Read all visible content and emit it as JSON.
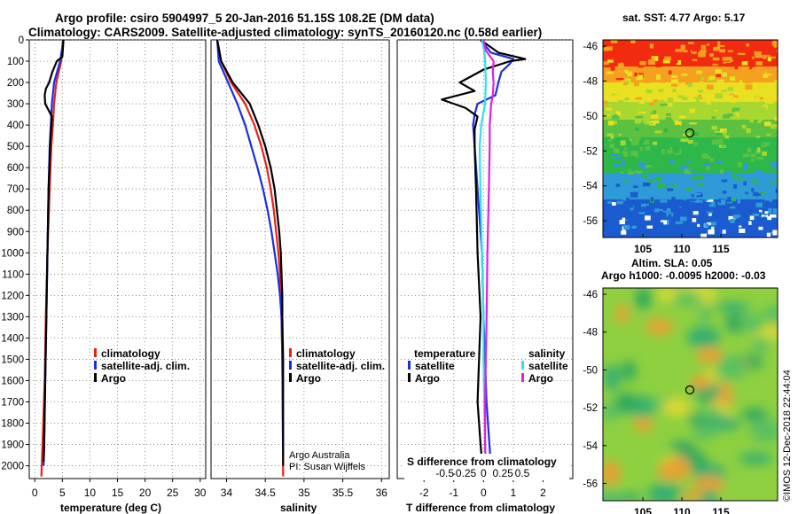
{
  "title_line1": "Argo profile: csiro 5904997_5 20-Jan-2016 51.15S 108.2E (DM data)",
  "title_line2": "Climatology: CARS2009. Satellite-adjusted climatology: synTS_20160120.nc (0.58d earlier)",
  "sst_title": "sat. SST: 4.77 Argo: 5.17",
  "sla_title_1": "Altim. SLA: 0.05",
  "sla_title_2": "Argo h1000: -0.0095 h2000: -0.03",
  "credit_1": "Argo Australia",
  "credit_2": "PI: Susan Wijffels",
  "timestamp": "©IMOS 12-Dec-2018 22:44:04",
  "colors": {
    "climatology": "#e8221a",
    "satellite": "#1a2ee0",
    "argo": "#000000",
    "satellite_s": "#30e0e8",
    "argo_s": "#e020e0"
  },
  "legend": {
    "climatology": "climatology",
    "satellite": "satellite-adj. clim.",
    "argo": "Argo"
  },
  "diff_legend": {
    "temperature": "temperature",
    "salinity": "salinity",
    "satellite": "satellite",
    "argo": "Argo"
  },
  "map_x_ticks": [
    "105",
    "110",
    "115"
  ],
  "map_y_ticks": [
    "-46",
    "-48",
    "-50",
    "-52",
    "-54",
    "-56"
  ],
  "chart_data": [
    {
      "type": "line",
      "title": "",
      "xlabel": "temperature (deg C)",
      "ylabel": "",
      "xlim": [
        -1,
        31
      ],
      "ylim": [
        2060,
        0
      ],
      "x_ticks": [
        "0",
        "5",
        "10",
        "15",
        "20",
        "25",
        "30"
      ],
      "y_ticks": [
        "0",
        "100",
        "200",
        "300",
        "400",
        "500",
        "600",
        "700",
        "800",
        "900",
        "1000",
        "1100",
        "1200",
        "1300",
        "1400",
        "1500",
        "1600",
        "1700",
        "1800",
        "1900",
        "2000"
      ],
      "series": [
        {
          "name": "climatology",
          "depth": [
            0,
            100,
            200,
            300,
            400,
            500,
            700,
            1000,
            1300,
            1600,
            1900,
            2050
          ],
          "values": [
            5.1,
            4.8,
            3.9,
            3.5,
            3.3,
            3.0,
            2.7,
            2.3,
            2.0,
            1.8,
            1.4,
            1.2
          ]
        },
        {
          "name": "satellite-adj. clim.",
          "depth": [
            0,
            100,
            200,
            300,
            400,
            500,
            700,
            1000,
            1300,
            1600,
            1900,
            2000
          ],
          "values": [
            5.2,
            4.6,
            3.5,
            3.1,
            2.9,
            2.7,
            2.5,
            2.3,
            2.1,
            1.9,
            1.7,
            1.6
          ]
        },
        {
          "name": "Argo",
          "depth": [
            0,
            80,
            100,
            150,
            200,
            230,
            260,
            300,
            330,
            360,
            400,
            500,
            700,
            1000,
            1300,
            1600,
            1900,
            1980
          ],
          "values": [
            5.2,
            5.0,
            4.0,
            3.2,
            2.6,
            2.0,
            1.8,
            1.9,
            2.5,
            3.1,
            3.0,
            2.8,
            2.5,
            2.3,
            2.1,
            1.9,
            1.7,
            1.6
          ]
        }
      ]
    },
    {
      "type": "line",
      "title": "",
      "xlabel": "salinity",
      "ylabel": "",
      "xlim": [
        33.8,
        36.1
      ],
      "ylim": [
        2060,
        0
      ],
      "x_ticks": [
        "34",
        "34.5",
        "35",
        "35.5",
        "36"
      ],
      "series": [
        {
          "name": "climatology",
          "depth": [
            0,
            100,
            200,
            300,
            400,
            500,
            600,
            700,
            800,
            900,
            1000,
            1100,
            1200,
            1300,
            1500,
            2050
          ],
          "values": [
            33.88,
            33.93,
            34.06,
            34.24,
            34.36,
            34.45,
            34.52,
            34.57,
            34.61,
            34.64,
            34.67,
            34.69,
            34.7,
            34.71,
            34.72,
            34.73
          ]
        },
        {
          "name": "satellite-adj. clim.",
          "depth": [
            0,
            100,
            200,
            300,
            400,
            500,
            600,
            700,
            800,
            900,
            1000,
            1100,
            1200,
            1300,
            1500,
            1950
          ],
          "values": [
            33.88,
            33.9,
            34.02,
            34.14,
            34.24,
            34.32,
            34.4,
            34.47,
            34.53,
            34.58,
            34.62,
            34.66,
            34.69,
            34.71,
            34.72,
            34.73
          ]
        },
        {
          "name": "Argo",
          "depth": [
            0,
            100,
            200,
            300,
            400,
            500,
            600,
            700,
            800,
            900,
            1000,
            1100,
            1200,
            1300,
            1500,
            2000
          ],
          "values": [
            33.88,
            33.93,
            34.08,
            34.3,
            34.41,
            34.5,
            34.57,
            34.62,
            34.65,
            34.68,
            34.7,
            34.71,
            34.72,
            34.72,
            34.73,
            34.73
          ]
        }
      ]
    },
    {
      "type": "line",
      "title": "",
      "xlabel": "T difference from climatology",
      "xlabel_top": "S difference from climatology",
      "xlim": [
        -2.9,
        3.0
      ],
      "ylim": [
        2060,
        0
      ],
      "x_ticks": [
        "-2",
        "-1",
        "0",
        "1",
        "2"
      ],
      "x_ticks_top": [
        "-0.5",
        "-0.25",
        "0",
        "0.25",
        "0.5"
      ],
      "series": [
        {
          "name": "temperature satellite",
          "depth": [
            0,
            60,
            90,
            110,
            150,
            200,
            260,
            300,
            350,
            400,
            500,
            700,
            1000,
            1300,
            1500,
            1700,
            1900,
            2000
          ],
          "values": [
            -0.1,
            0.25,
            1.0,
            0.9,
            0.6,
            0.5,
            0.4,
            -0.2,
            -0.3,
            -0.35,
            -0.3,
            -0.2,
            -0.05,
            0.0,
            0.05,
            0.1,
            0.2,
            0.25
          ]
        },
        {
          "name": "temperature Argo",
          "depth": [
            0,
            60,
            90,
            100,
            140,
            200,
            240,
            280,
            320,
            360,
            420,
            500,
            700,
            1000,
            1300,
            1500,
            1700,
            1900,
            1980
          ],
          "values": [
            -0.1,
            0.5,
            1.4,
            0.9,
            0.0,
            -0.8,
            -0.3,
            -1.4,
            -0.6,
            -0.2,
            -0.3,
            -0.3,
            -0.25,
            -0.2,
            -0.1,
            -0.15,
            -0.2,
            -0.1,
            -0.05
          ]
        },
        {
          "name": "salinity satellite",
          "depth": [
            0,
            50,
            100,
            200,
            300,
            400,
            500,
            700,
            1000,
            1300,
            1500,
            1700,
            1900,
            2000
          ],
          "values": [
            -0.02,
            0.01,
            0.02,
            0.03,
            0.02,
            -0.03,
            -0.05,
            -0.04,
            -0.02,
            0.0,
            0.0,
            0.01,
            0.02,
            0.03
          ]
        },
        {
          "name": "salinity Argo",
          "depth": [
            0,
            50,
            100,
            150,
            200,
            260,
            300,
            400,
            500,
            700,
            1000,
            1300,
            1500,
            1700,
            1900,
            2000
          ],
          "values": [
            0.0,
            0.03,
            0.13,
            0.12,
            0.13,
            0.12,
            0.1,
            0.08,
            0.08,
            0.07,
            0.05,
            0.04,
            0.03,
            0.02,
            0.02,
            0.03
          ]
        }
      ]
    }
  ]
}
